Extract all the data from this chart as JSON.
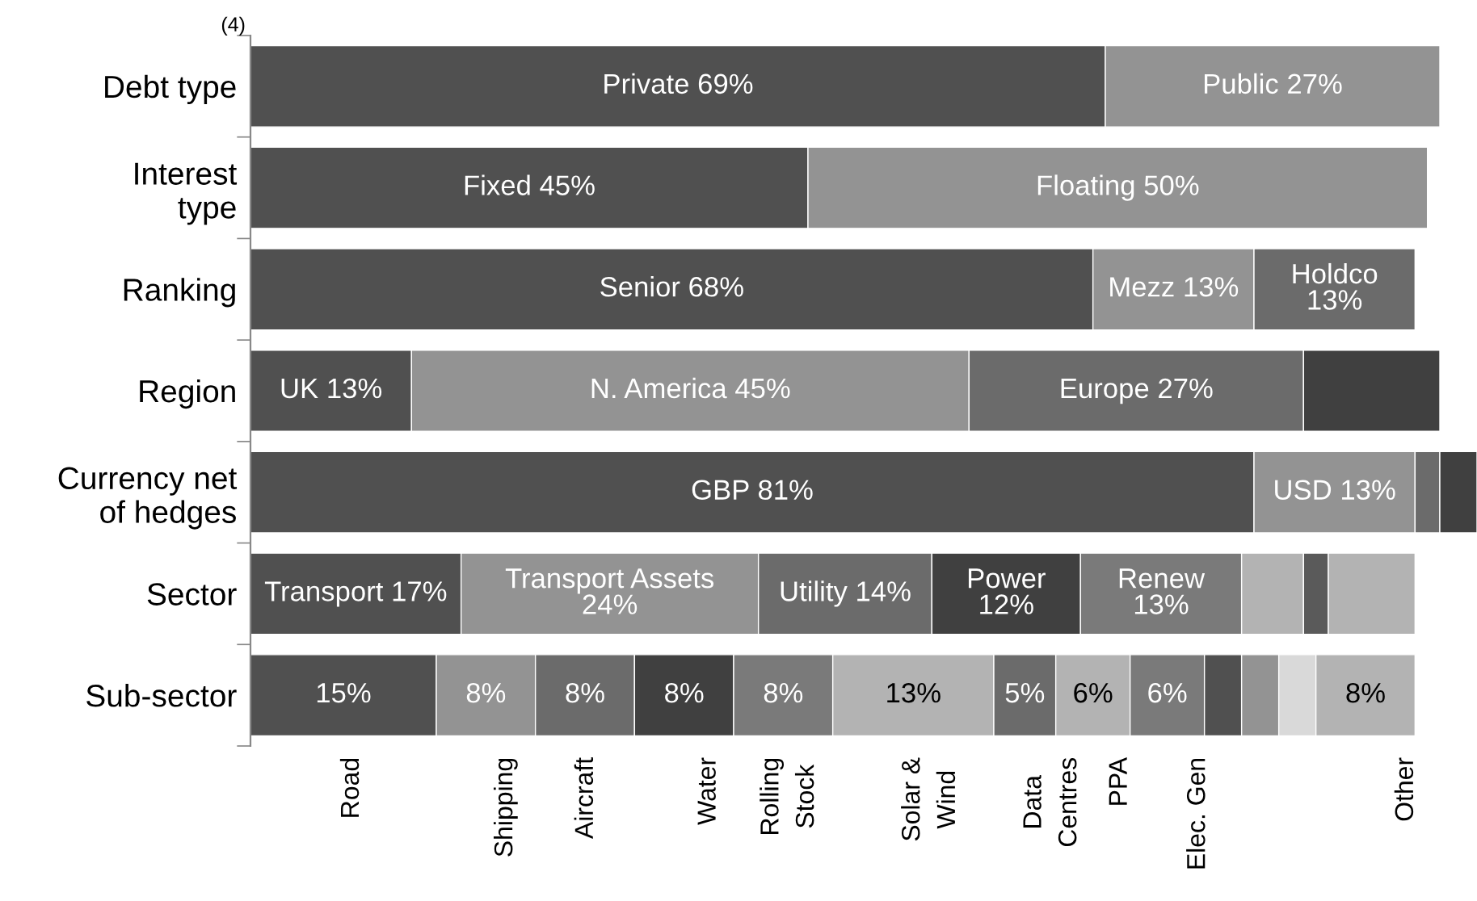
{
  "chart_data": {
    "type": "bar",
    "orientation": "horizontal",
    "stacked": true,
    "tick_labels": "y",
    "grid": false,
    "categories": [
      "Debt type",
      "Interest\ntype",
      "Ranking",
      "Region",
      "Currency net\nof hedges",
      "Sector",
      "Sub-sector"
    ],
    "series": [
      {
        "values": [
          69,
          45,
          68,
          13,
          81,
          17,
          15
        ],
        "colors": [
          "#505050",
          "#505050",
          "#505050",
          "#505050",
          "#505050",
          "#505050",
          "#505050"
        ],
        "value_labels": [
          "Private 69%",
          "Fixed 45%",
          "Senior 68%",
          "UK 13%",
          "GBP 81%",
          "Transport 17%",
          "15%"
        ]
      },
      {
        "values": [
          27,
          50,
          13,
          45,
          13,
          24,
          8
        ],
        "colors": [
          "#939393",
          "#939393",
          "#939393",
          "#939393",
          "#939393",
          "#939393",
          "#939393"
        ],
        "value_labels": [
          "Public 27%",
          "Floating 50%",
          "Mezz 13%",
          "N. America 45%",
          "USD 13%",
          "Transport Assets\n24%",
          "8%"
        ]
      },
      {
        "values": [
          null,
          null,
          13,
          27,
          2,
          14,
          8
        ],
        "colors": [
          null,
          null,
          "#6b6b6b",
          "#6b6b6b",
          "#6b6b6b",
          "#6b6b6b",
          "#6b6b6b"
        ],
        "value_labels": [
          null,
          null,
          "Holdco\n13%",
          "Europe 27%",
          null,
          "Utility 14%",
          "8%"
        ]
      },
      {
        "values": [
          null,
          null,
          null,
          11,
          3,
          12,
          8
        ],
        "colors": [
          null,
          null,
          null,
          "#404040",
          "#404040",
          "#404040",
          "#404040"
        ],
        "value_labels": [
          null,
          null,
          null,
          null,
          null,
          "Power\n12%",
          "8%"
        ]
      },
      {
        "values": [
          null,
          null,
          null,
          null,
          null,
          13,
          8
        ],
        "colors": [
          null,
          null,
          null,
          null,
          null,
          "#7a7a7a",
          "#7a7a7a"
        ],
        "value_labels": [
          null,
          null,
          null,
          null,
          null,
          "Renew\n13%",
          "8%"
        ]
      },
      {
        "values": [
          null,
          null,
          null,
          null,
          null,
          5,
          13
        ],
        "colors": [
          null,
          null,
          null,
          null,
          null,
          "#b3b3b3",
          "#b3b3b3"
        ],
        "value_labels": [
          null,
          null,
          null,
          null,
          null,
          null,
          "13%"
        ]
      },
      {
        "values": [
          null,
          null,
          null,
          null,
          null,
          2,
          5
        ],
        "colors": [
          null,
          null,
          null,
          null,
          null,
          "#5a5a5a",
          "#6b6b6b"
        ],
        "value_labels": [
          null,
          null,
          null,
          null,
          null,
          null,
          "5%"
        ]
      },
      {
        "values": [
          null,
          null,
          null,
          null,
          null,
          7,
          6
        ],
        "colors": [
          null,
          null,
          null,
          null,
          null,
          "#b3b3b3",
          "#b3b3b3"
        ],
        "value_labels": [
          null,
          null,
          null,
          null,
          null,
          null,
          "6%"
        ]
      },
      {
        "values": [
          null,
          null,
          null,
          null,
          null,
          null,
          6
        ],
        "colors": [
          null,
          null,
          null,
          null,
          null,
          null,
          "#7a7a7a"
        ],
        "value_labels": [
          null,
          null,
          null,
          null,
          null,
          null,
          "6%"
        ]
      },
      {
        "values": [
          null,
          null,
          null,
          null,
          null,
          null,
          3
        ],
        "colors": [
          null,
          null,
          null,
          null,
          null,
          null,
          "#505050"
        ],
        "value_labels": [
          null,
          null,
          null,
          null,
          null,
          null,
          null
        ]
      },
      {
        "values": [
          null,
          null,
          null,
          null,
          null,
          null,
          3
        ],
        "colors": [
          null,
          null,
          null,
          null,
          null,
          null,
          "#939393"
        ],
        "value_labels": [
          null,
          null,
          null,
          null,
          null,
          null,
          null
        ]
      },
      {
        "values": [
          null,
          null,
          null,
          null,
          null,
          null,
          3
        ],
        "colors": [
          null,
          null,
          null,
          null,
          null,
          null,
          "#d9d9d9"
        ],
        "value_labels": [
          null,
          null,
          null,
          null,
          null,
          null,
          null
        ]
      },
      {
        "values": [
          null,
          null,
          null,
          null,
          null,
          null,
          8
        ],
        "colors": [
          null,
          null,
          null,
          null,
          null,
          null,
          "#b3b3b3"
        ],
        "value_labels": [
          null,
          null,
          null,
          null,
          null,
          null,
          "8%"
        ]
      }
    ],
    "annotations": [
      "(4)",
      {
        "text": "Road",
        "x": 8.2,
        "y": "Sub-sector"
      },
      {
        "text": "Shipping",
        "x": 20.6,
        "y": "Sub-sector"
      },
      {
        "text": "Aircraft",
        "x": 27.1,
        "y": "Sub-sector"
      },
      {
        "text": "Water",
        "x": 37,
        "y": "Sub-sector"
      },
      {
        "text": "Rolling\nStock",
        "x": 43.5,
        "y": "Sub-sector"
      },
      {
        "text": "Solar &\nWind",
        "x": 54.9,
        "y": "Sub-sector"
      },
      {
        "text": "Data\nCentres",
        "x": 64.7,
        "y": "Sub-sector"
      },
      {
        "text": "PPA",
        "x": 70.2,
        "y": "Sub-sector"
      },
      {
        "text": "Elec. Gen",
        "x": 76.5,
        "y": "Sub-sector"
      },
      {
        "text": "Other",
        "x": 93.3,
        "y": "Sub-sector"
      }
    ]
  }
}
